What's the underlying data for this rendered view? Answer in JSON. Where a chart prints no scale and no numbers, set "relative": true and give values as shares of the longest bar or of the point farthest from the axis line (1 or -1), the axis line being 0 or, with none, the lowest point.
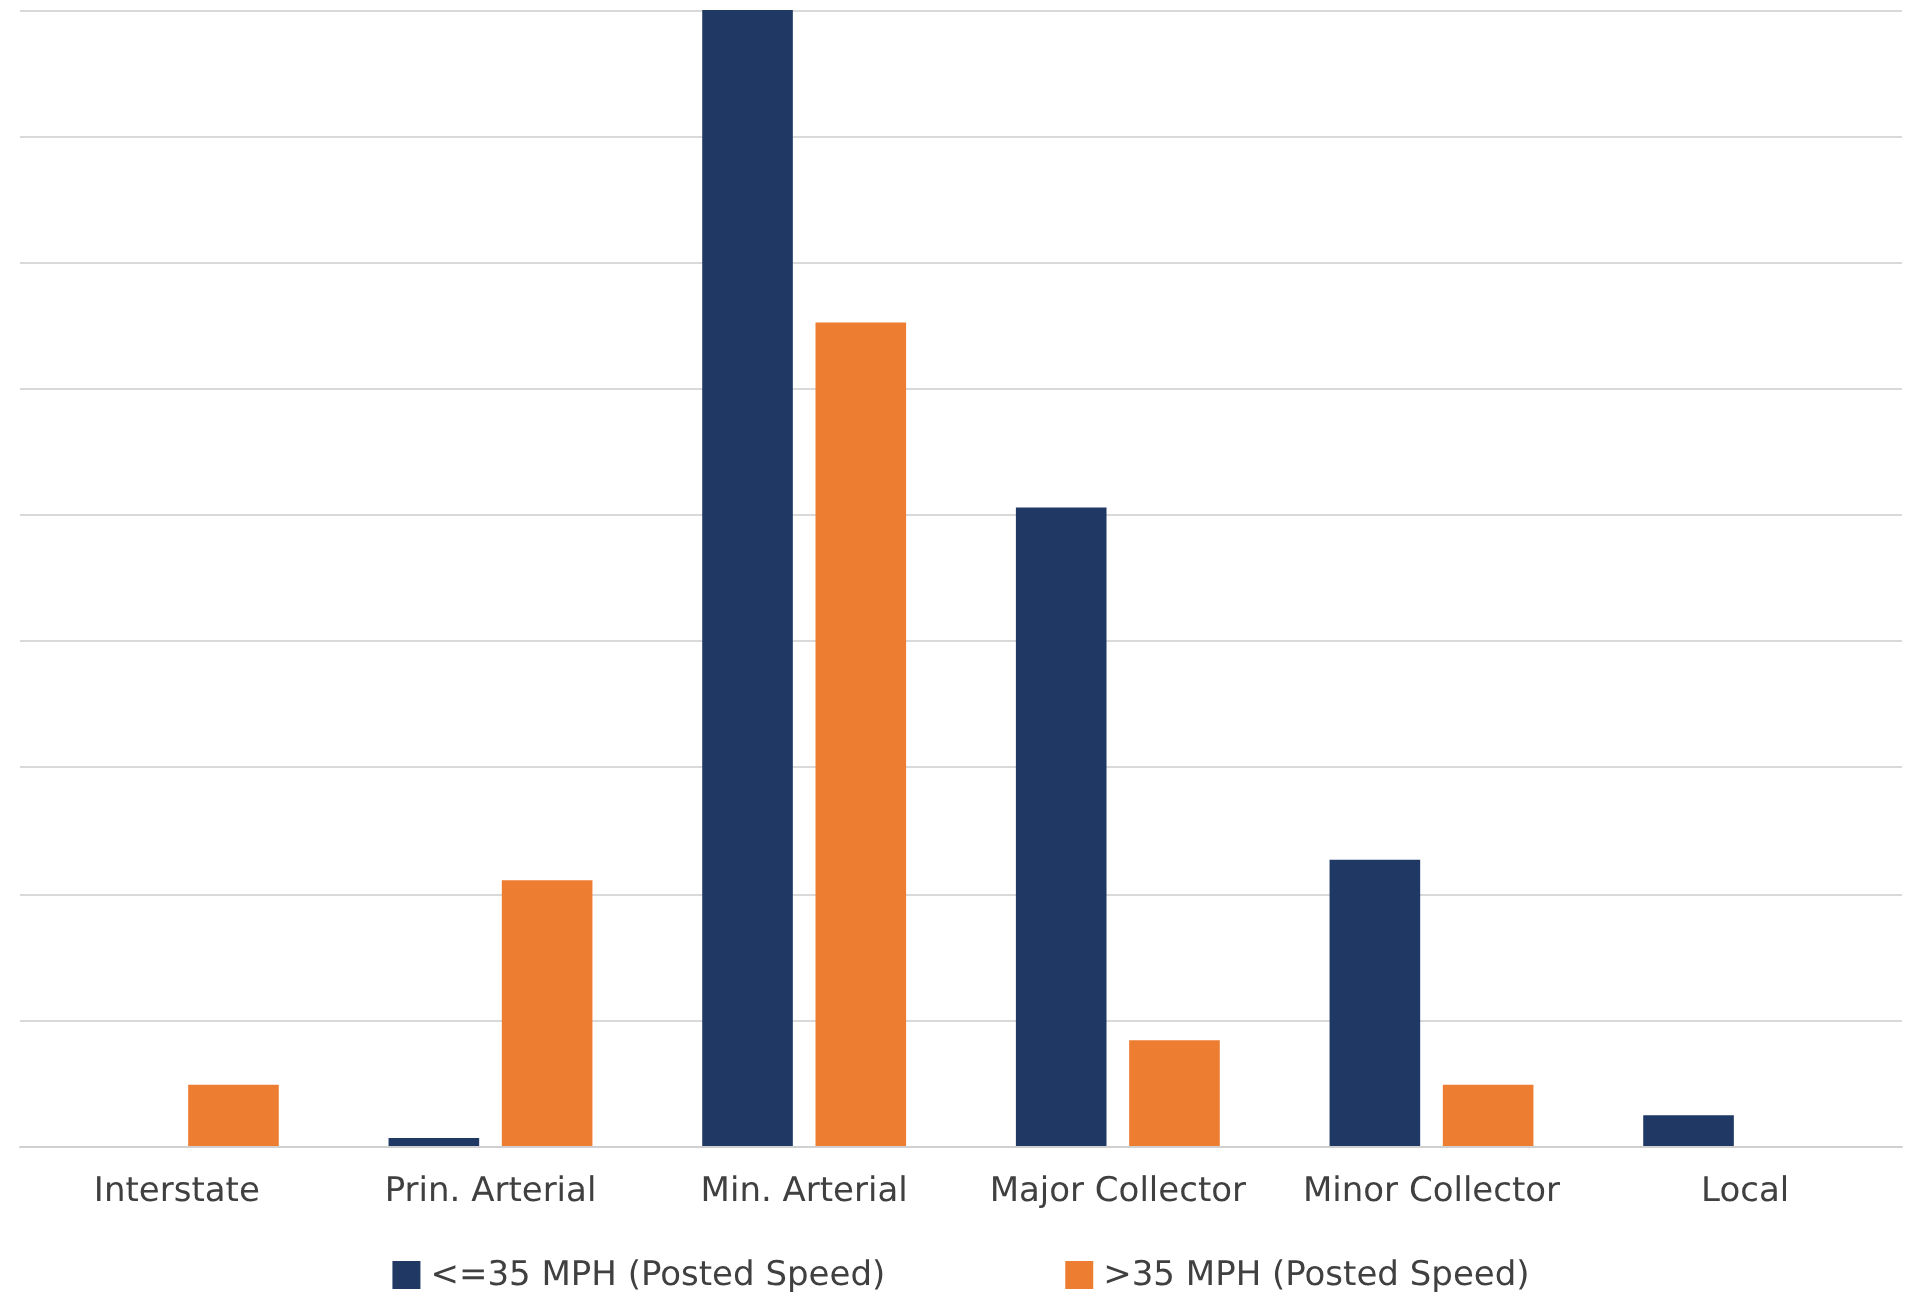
{
  "chart_data": {
    "type": "bar",
    "relative": true,
    "categories": [
      "Interstate",
      "Prin. Arterial",
      "Min. Arterial",
      "Major Collector",
      "Minor Collector",
      "Local"
    ],
    "series": [
      {
        "name": "<=35 MPH (Posted Speed)",
        "color": "#1f3864",
        "values": [
          0,
          0.007,
          1,
          0.562,
          0.252,
          0.027
        ]
      },
      {
        "name": ">35 MPH (Posted Speed)",
        "color": "#ed7d31",
        "values": [
          0.054,
          0.234,
          0.725,
          0.093,
          0.054,
          0
        ]
      }
    ],
    "grid": "y",
    "legend": "bottom"
  }
}
